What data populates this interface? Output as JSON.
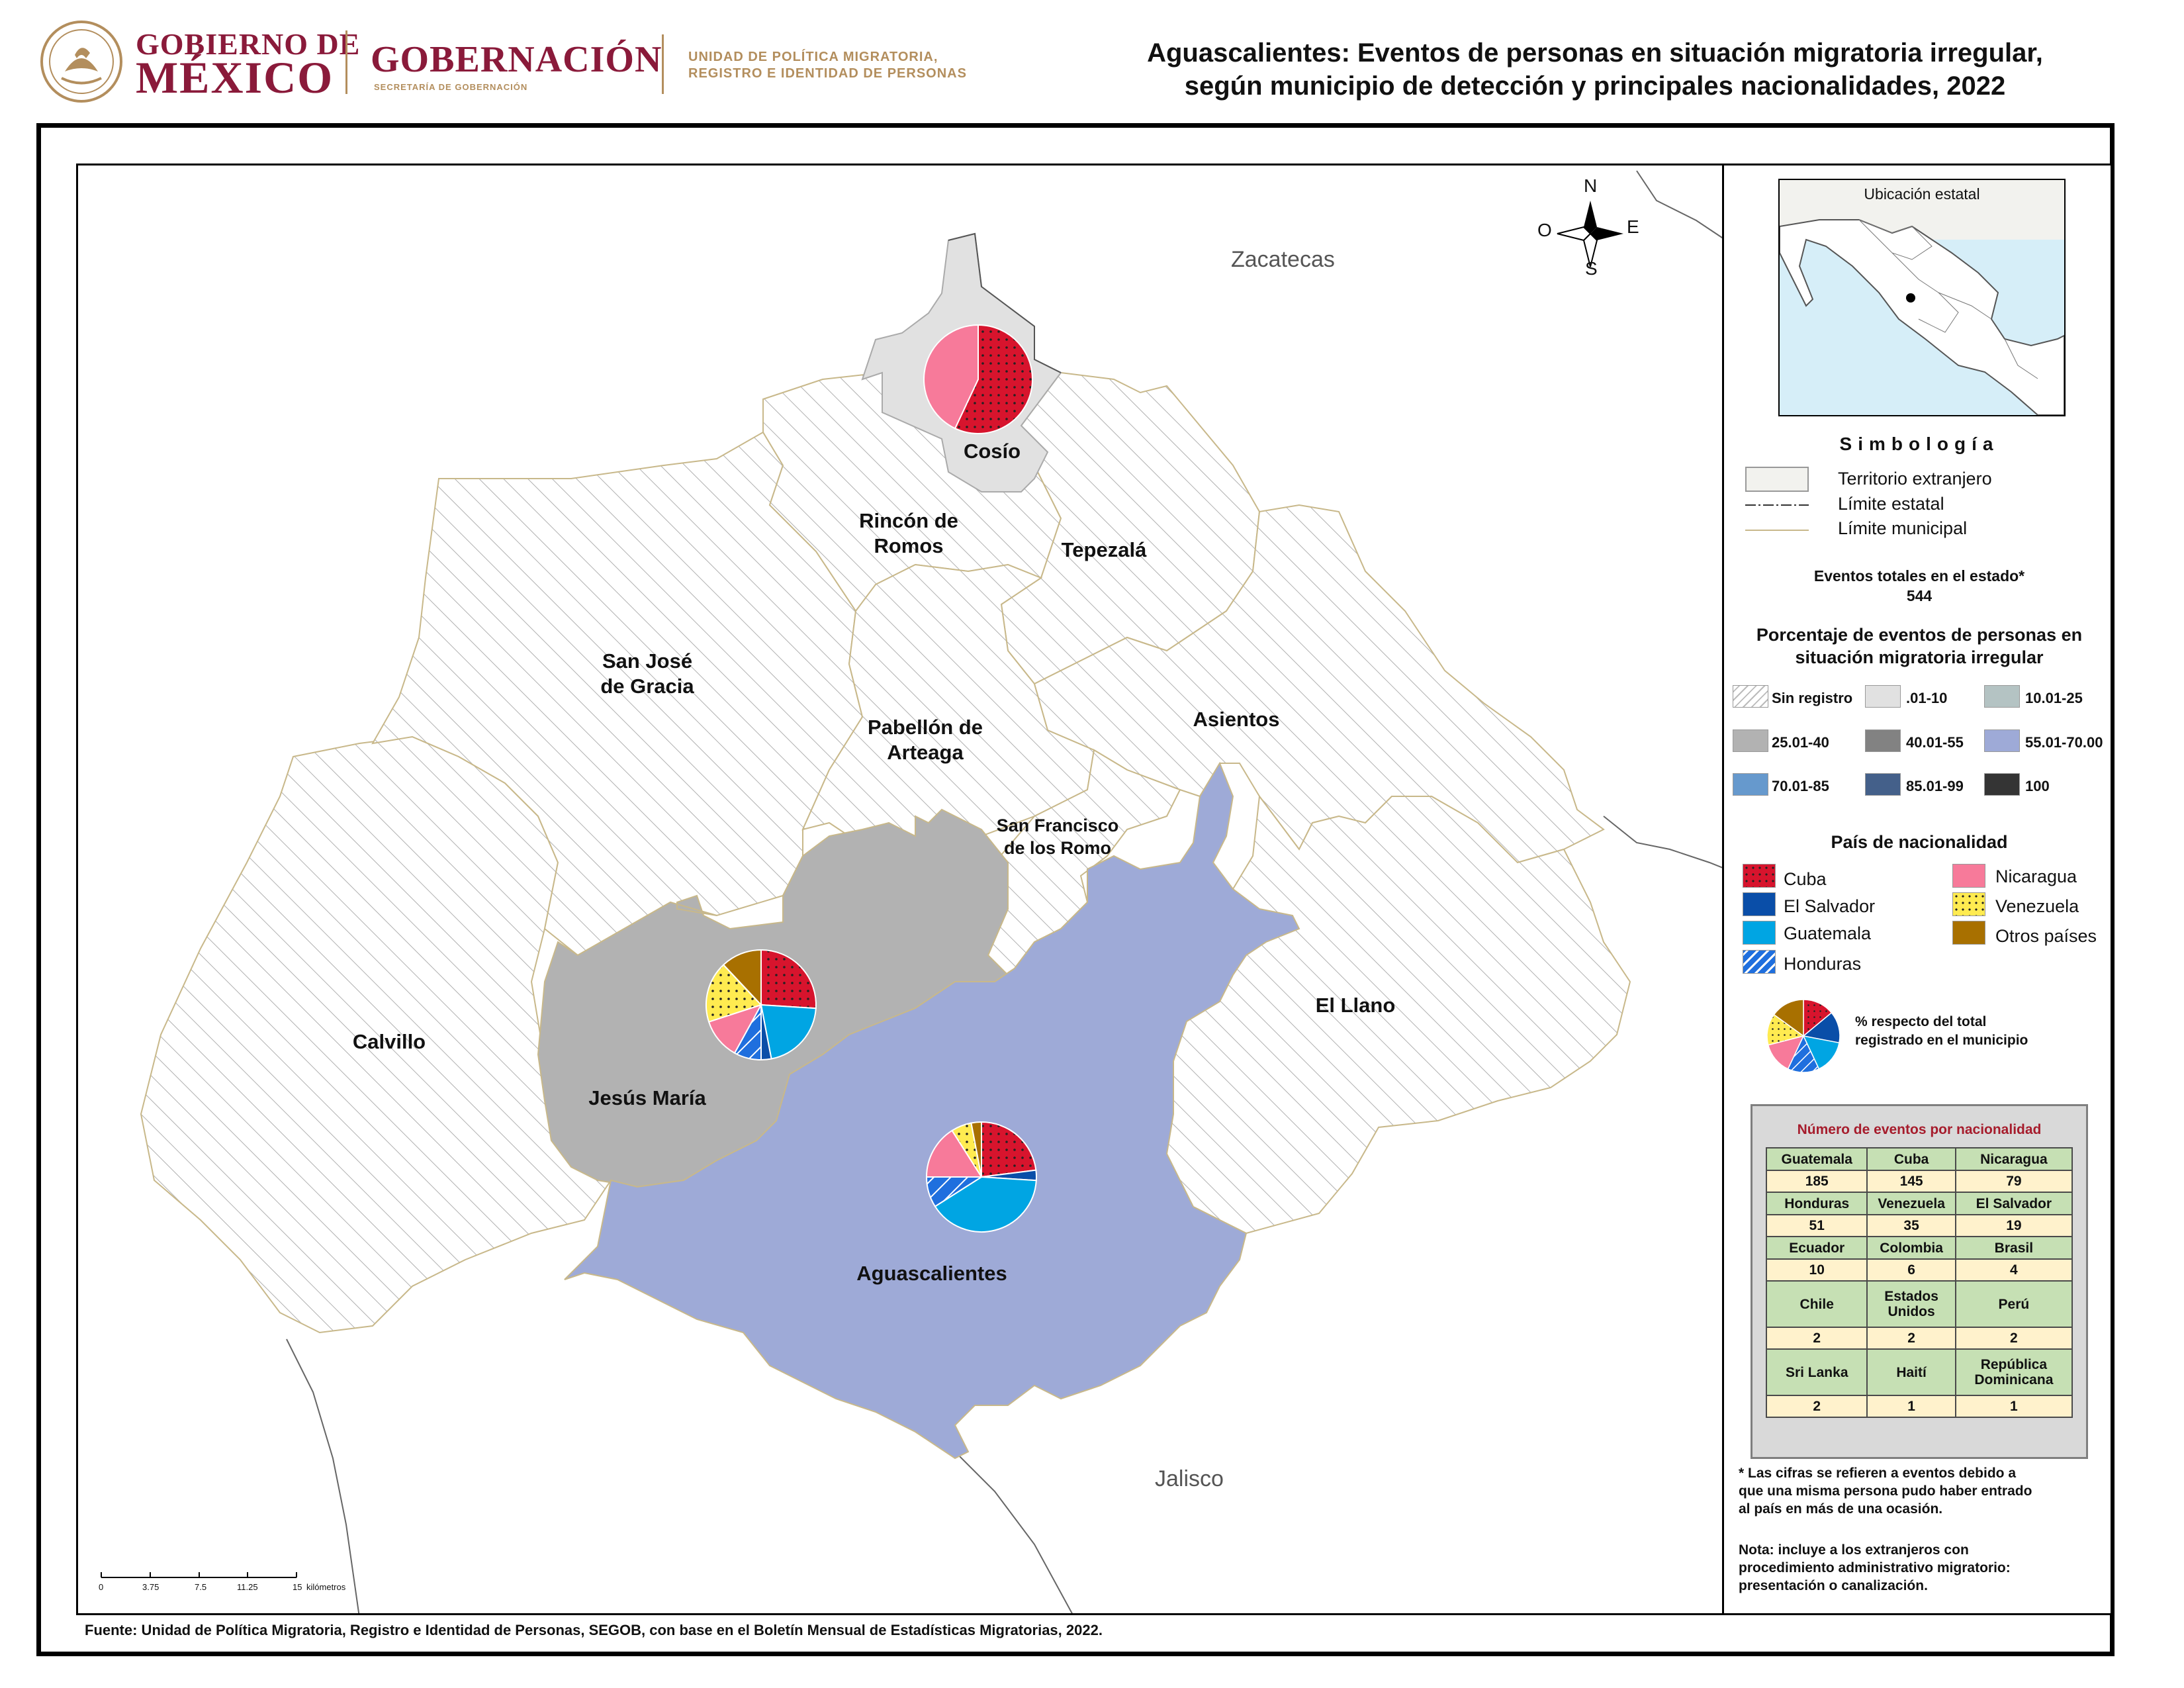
{
  "header": {
    "gov_line1": "GOBIERNO DE",
    "gov_line2": "MÉXICO",
    "ministry": "GOBERNACIÓN",
    "ministry_sub": "SECRETARÍA DE GOBERNACIÓN",
    "unit_line1": "UNIDAD DE POLÍTICA MIGRATORIA,",
    "unit_line2": "REGISTRO E IDENTIDAD DE PERSONAS",
    "title_line1": "Aguascalientes: Eventos de personas en situación migratoria irregular,",
    "title_line2": "según municipio de detección y principales nacionalidades, 2022"
  },
  "compass": {
    "n": "N",
    "s": "S",
    "e": "E",
    "w": "O"
  },
  "neighbors": {
    "north": "Zacatecas",
    "south": "Jalisco"
  },
  "municipalities": {
    "cosio": "Cosío",
    "rincon_1": "Rincón de",
    "rincon_2": "Romos",
    "tepezala": "Tepezalá",
    "sanjose_1": "San José",
    "sanjose_2": "de Gracia",
    "pabellon_1": "Pabellón de",
    "pabellon_2": "Arteaga",
    "asientos": "Asientos",
    "sanfrancisco_1": "San Francisco",
    "sanfrancisco_2": "de los Romo",
    "calvillo": "Calvillo",
    "jesusmaria": "Jesús María",
    "elllano": "El Llano",
    "aguascalientes": "Aguascalientes"
  },
  "municipality_fill_classes": {
    "Aguascalientes": "55.01-70.00",
    "Jesús María": "25.01-40",
    "Cosío": ".01-10",
    "others": "Sin registro"
  },
  "pies": {
    "cosio": [
      {
        "nationality": "Cuba",
        "pct": 57
      },
      {
        "nationality": "Nicaragua",
        "pct": 43
      }
    ],
    "jesusmaria": [
      {
        "nationality": "Cuba",
        "pct": 26
      },
      {
        "nationality": "Guatemala",
        "pct": 21
      },
      {
        "nationality": "El Salvador",
        "pct": 3
      },
      {
        "nationality": "Honduras",
        "pct": 8
      },
      {
        "nationality": "Nicaragua",
        "pct": 12
      },
      {
        "nationality": "Venezuela",
        "pct": 18
      },
      {
        "nationality": "Otros países",
        "pct": 12
      }
    ],
    "aguascalientes": [
      {
        "nationality": "Cuba",
        "pct": 23
      },
      {
        "nationality": "El Salvador",
        "pct": 3
      },
      {
        "nationality": "Guatemala",
        "pct": 40
      },
      {
        "nationality": "Honduras",
        "pct": 9
      },
      {
        "nationality": "Nicaragua",
        "pct": 16
      },
      {
        "nationality": "Venezuela",
        "pct": 6
      },
      {
        "nationality": "Otros países",
        "pct": 3
      }
    ],
    "legend": [
      {
        "nationality": "Cuba",
        "pct": 14
      },
      {
        "nationality": "El Salvador",
        "pct": 14
      },
      {
        "nationality": "Guatemala",
        "pct": 15
      },
      {
        "nationality": "Honduras",
        "pct": 14
      },
      {
        "nationality": "Nicaragua",
        "pct": 14
      },
      {
        "nationality": "Venezuela",
        "pct": 14
      },
      {
        "nationality": "Otros países",
        "pct": 15
      }
    ]
  },
  "inset": {
    "title": "Ubicación estatal"
  },
  "legend": {
    "title": "Simbología",
    "foreign": "Territorio extranjero",
    "state_limit": "Límite estatal",
    "muni_limit": "Límite municipal",
    "total_label": "Eventos totales en el estado*",
    "total_value": "544",
    "pct_title_1": "Porcentaje de eventos de personas en",
    "pct_title_2": "situación migratoria irregular",
    "classes": [
      {
        "label": "Sin registro",
        "color": "#ffffff",
        "hatch": true
      },
      {
        "label": ".01-10",
        "color": "#e1e1e1"
      },
      {
        "label": "10.01-25",
        "color": "#b4c3c3"
      },
      {
        "label": "25.01-40",
        "color": "#b2b2b2"
      },
      {
        "label": "40.01-55",
        "color": "#828282"
      },
      {
        "label": "55.01-70.00",
        "color": "#9eaad7"
      },
      {
        "label": "70.01-85",
        "color": "#6699cd"
      },
      {
        "label": "85.01-99",
        "color": "#44608a"
      },
      {
        "label": "100",
        "color": "#343434"
      }
    ],
    "nat_title": "País de nacionalidad",
    "nationalities": [
      {
        "label": "Cuba",
        "color": "#d7142d"
      },
      {
        "label": "Nicaragua",
        "color": "#f77a9a"
      },
      {
        "label": "El Salvador",
        "color": "#0a4ea8"
      },
      {
        "label": "Venezuela",
        "color": "#ffeb50"
      },
      {
        "label": "Guatemala",
        "color": "#00a5e3"
      },
      {
        "label": "Otros países",
        "color": "#a87000"
      },
      {
        "label": "Honduras",
        "color": "#1f6fde"
      }
    ],
    "pie_note_1": "% respecto del total",
    "pie_note_2": "registrado en el municipio"
  },
  "table": {
    "title": "Número de eventos por nacionalidad",
    "rows": [
      {
        "names": [
          "Guatemala",
          "Cuba",
          "Nicaragua"
        ],
        "values": [
          "185",
          "145",
          "79"
        ]
      },
      {
        "names": [
          "Honduras",
          "Venezuela",
          "El Salvador"
        ],
        "values": [
          "51",
          "35",
          "19"
        ]
      },
      {
        "names": [
          "Ecuador",
          "Colombia",
          "Brasil"
        ],
        "values": [
          "10",
          "6",
          "4"
        ]
      },
      {
        "names": [
          "Chile",
          "Estados Unidos",
          "Perú"
        ],
        "values": [
          "2",
          "2",
          "2"
        ]
      },
      {
        "names": [
          "Sri Lanka",
          "Haití",
          "República Dominicana"
        ],
        "values": [
          "2",
          "1",
          "1"
        ]
      }
    ]
  },
  "notes": {
    "note1_1": "* Las cifras se refieren a eventos debido a",
    "note1_2": "que una misma persona pudo haber entrado",
    "note1_3": "al país en más de una ocasión.",
    "note2_1": "Nota: incluye a los extranjeros con",
    "note2_2": "procedimiento administrativo migratorio:",
    "note2_3": "presentación o canalización."
  },
  "scale": {
    "ticks": [
      "0",
      "3.75",
      "7.5",
      "11.25",
      "15"
    ],
    "unit": "kilómetros"
  },
  "source": "Fuente: Unidad de Política Migratoria, Registro e Identidad de Personas, SEGOB, con base en el Boletín Mensual de Estadísticas Migratorias, 2022."
}
